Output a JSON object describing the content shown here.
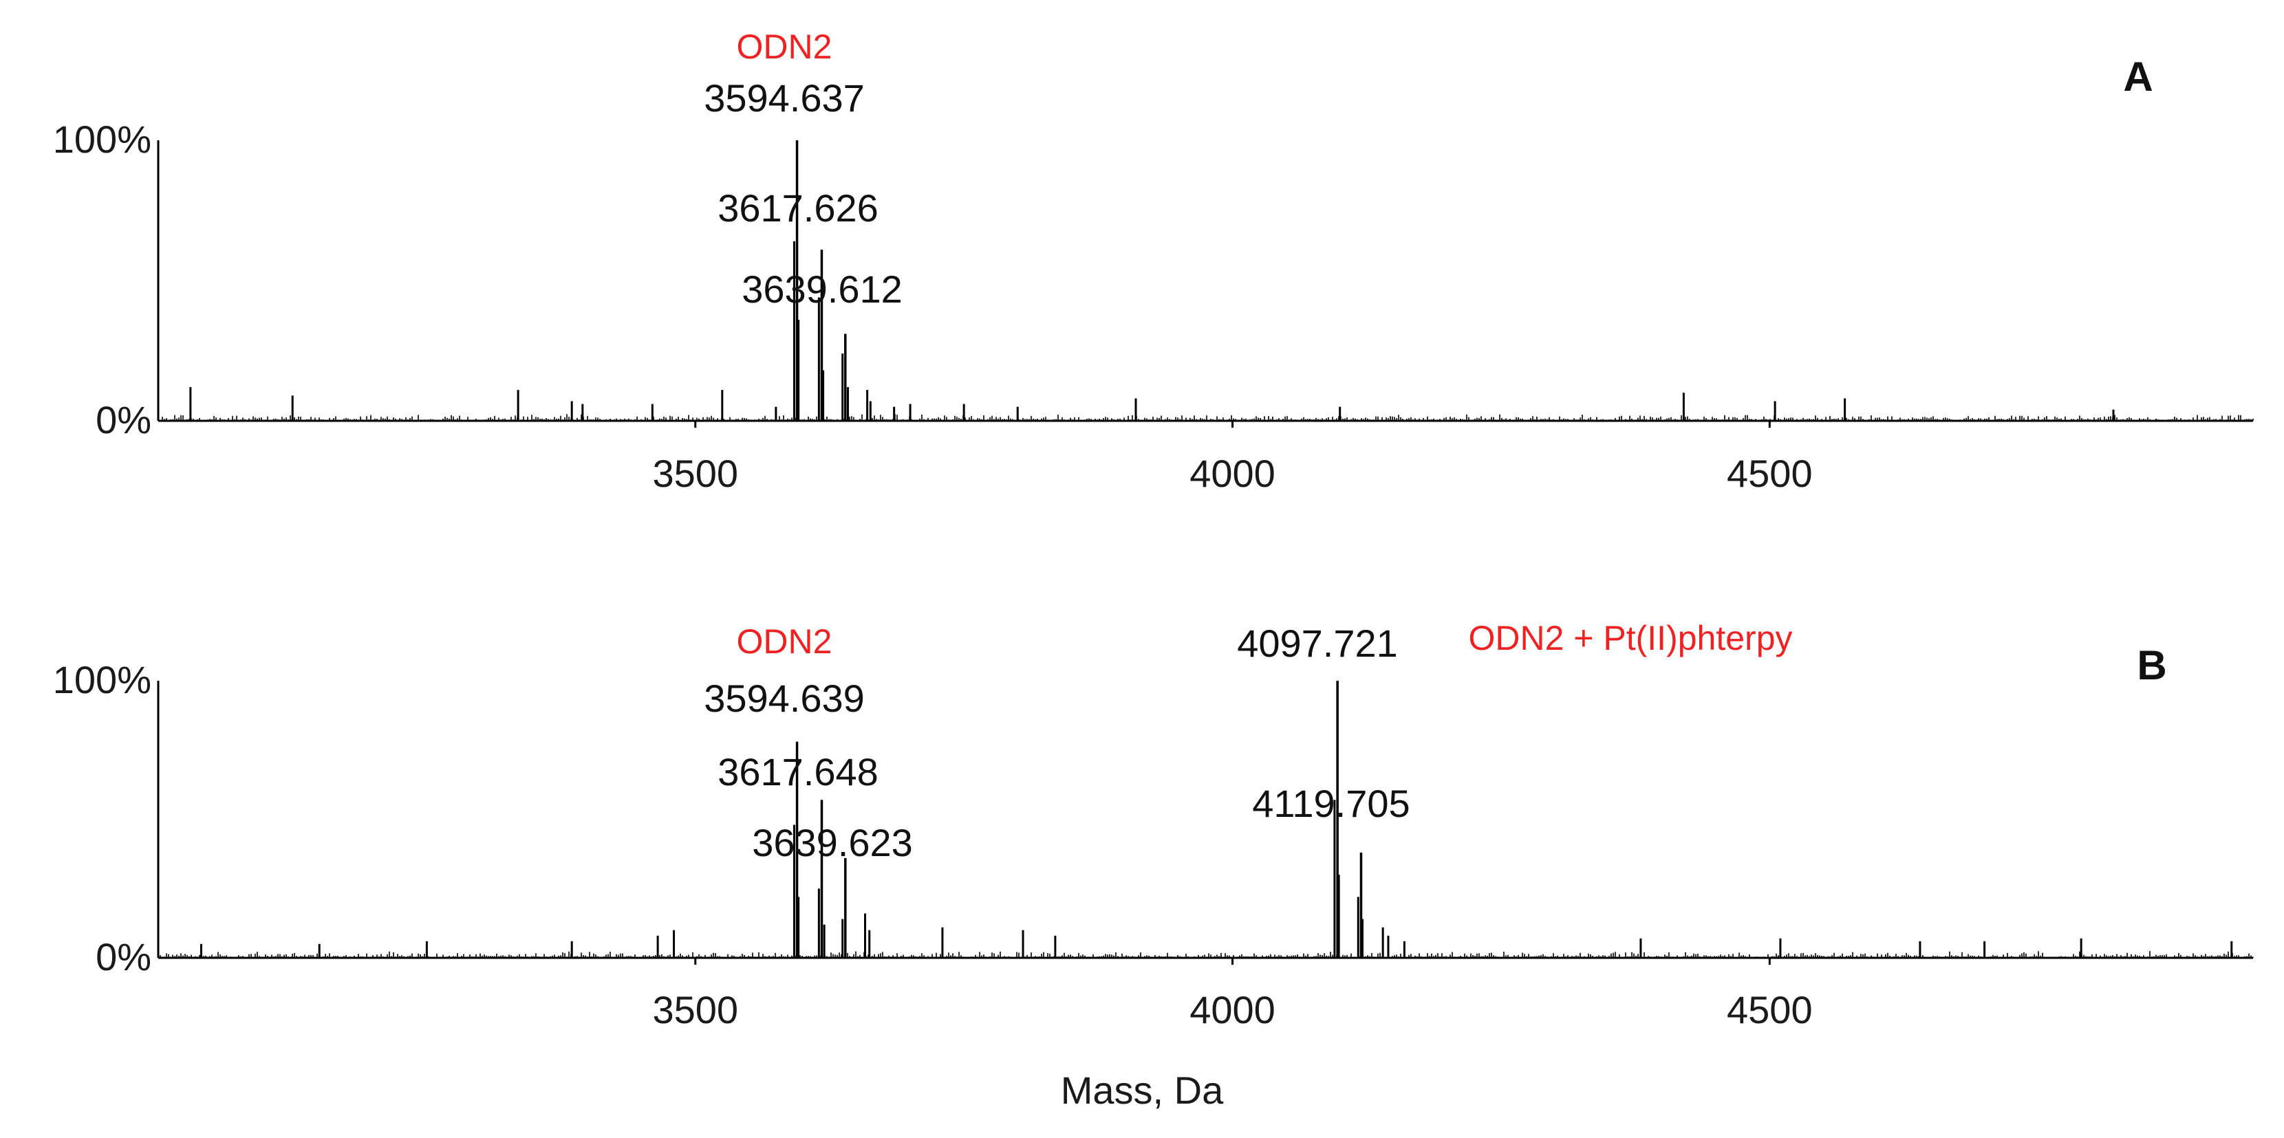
{
  "colors": {
    "annotation_red": "#ee2222",
    "trace": "#000000"
  },
  "chart_data": {
    "type": "line",
    "xlabel": "Mass, Da",
    "xlim": [
      3000,
      4950
    ],
    "x_ticks": [
      3500,
      4000,
      4500
    ],
    "y_ticks": [
      "0%",
      "100%"
    ],
    "ylim": [
      0,
      100
    ],
    "grid": false,
    "panels": [
      {
        "letter": "A",
        "species": [
          {
            "text": "ODN2",
            "x": 3594.637
          }
        ],
        "peaks": [
          {
            "mass": 3594.637,
            "intensity": 100,
            "label": "3594.637"
          },
          {
            "mass": 3617.626,
            "intensity": 61,
            "label": "3617.626"
          },
          {
            "mass": 3639.612,
            "intensity": 31,
            "label": "3639.612"
          }
        ],
        "minor_peaks": [
          {
            "mass": 3592,
            "intensity": 64
          },
          {
            "mass": 3596,
            "intensity": 36
          },
          {
            "mass": 3615,
            "intensity": 44
          },
          {
            "mass": 3619,
            "intensity": 18
          },
          {
            "mass": 3637,
            "intensity": 24
          },
          {
            "mass": 3642,
            "intensity": 12
          },
          {
            "mass": 3660,
            "intensity": 11
          },
          {
            "mass": 3663,
            "intensity": 7
          },
          {
            "mass": 3685,
            "intensity": 5
          },
          {
            "mass": 3700,
            "intensity": 6
          },
          {
            "mass": 3030,
            "intensity": 12
          },
          {
            "mass": 3125,
            "intensity": 9
          },
          {
            "mass": 3335,
            "intensity": 11
          },
          {
            "mass": 3385,
            "intensity": 7
          },
          {
            "mass": 3395,
            "intensity": 6
          },
          {
            "mass": 3460,
            "intensity": 6
          },
          {
            "mass": 3525,
            "intensity": 11
          },
          {
            "mass": 3575,
            "intensity": 5
          },
          {
            "mass": 3750,
            "intensity": 6
          },
          {
            "mass": 3800,
            "intensity": 5
          },
          {
            "mass": 3910,
            "intensity": 8
          },
          {
            "mass": 4100,
            "intensity": 5
          },
          {
            "mass": 4420,
            "intensity": 10
          },
          {
            "mass": 4505,
            "intensity": 7
          },
          {
            "mass": 4570,
            "intensity": 8
          },
          {
            "mass": 4820,
            "intensity": 4
          }
        ]
      },
      {
        "letter": "B",
        "species": [
          {
            "text": "ODN2",
            "x": 3594.639
          },
          {
            "text": "ODN2 + Pt(II)phterpy",
            "x": 4097.721
          }
        ],
        "peaks": [
          {
            "mass": 3594.639,
            "intensity": 78,
            "label": "3594.639"
          },
          {
            "mass": 3617.648,
            "intensity": 57,
            "label": "3617.648"
          },
          {
            "mass": 3639.623,
            "intensity": 36,
            "label": "3639.623"
          },
          {
            "mass": 4097.721,
            "intensity": 100,
            "label": "4097.721"
          },
          {
            "mass": 4119.705,
            "intensity": 38,
            "label": "4119.705"
          }
        ],
        "minor_peaks": [
          {
            "mass": 3592,
            "intensity": 48
          },
          {
            "mass": 3596,
            "intensity": 22
          },
          {
            "mass": 3615,
            "intensity": 25
          },
          {
            "mass": 3620,
            "intensity": 12
          },
          {
            "mass": 3637,
            "intensity": 14
          },
          {
            "mass": 3658,
            "intensity": 16
          },
          {
            "mass": 3662,
            "intensity": 10
          },
          {
            "mass": 3730,
            "intensity": 11
          },
          {
            "mass": 3805,
            "intensity": 10
          },
          {
            "mass": 3835,
            "intensity": 8
          },
          {
            "mass": 3480,
            "intensity": 10
          },
          {
            "mass": 3465,
            "intensity": 8
          },
          {
            "mass": 3385,
            "intensity": 6
          },
          {
            "mass": 3250,
            "intensity": 6
          },
          {
            "mass": 3150,
            "intensity": 5
          },
          {
            "mass": 3040,
            "intensity": 5
          },
          {
            "mass": 4095,
            "intensity": 57
          },
          {
            "mass": 4099,
            "intensity": 30
          },
          {
            "mass": 4117,
            "intensity": 22
          },
          {
            "mass": 4121,
            "intensity": 14
          },
          {
            "mass": 4140,
            "intensity": 11
          },
          {
            "mass": 4145,
            "intensity": 8
          },
          {
            "mass": 4160,
            "intensity": 6
          },
          {
            "mass": 4380,
            "intensity": 7
          },
          {
            "mass": 4510,
            "intensity": 7
          },
          {
            "mass": 4640,
            "intensity": 6
          },
          {
            "mass": 4700,
            "intensity": 6
          },
          {
            "mass": 4790,
            "intensity": 7
          },
          {
            "mass": 4930,
            "intensity": 6
          }
        ]
      }
    ]
  }
}
